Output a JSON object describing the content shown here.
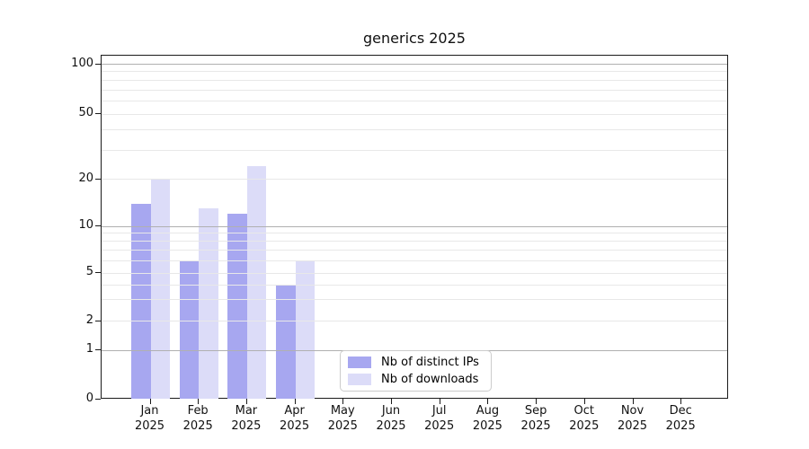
{
  "title": "generics 2025",
  "chart_data": {
    "type": "bar",
    "title": "generics 2025",
    "categories": [
      "Jan",
      "Feb",
      "Mar",
      "Apr",
      "May",
      "Jun",
      "Jul",
      "Aug",
      "Sep",
      "Oct",
      "Nov",
      "Dec"
    ],
    "year_label": "2025",
    "series": [
      {
        "name": "Nb of distinct IPs",
        "color": "#a7a7f0",
        "values": [
          14,
          6,
          12,
          4,
          0,
          0,
          0,
          0,
          0,
          0,
          0,
          0
        ]
      },
      {
        "name": "Nb of downloads",
        "color": "#dcdcf8",
        "values": [
          20,
          13,
          24,
          6,
          0,
          0,
          0,
          0,
          0,
          0,
          0,
          0
        ]
      }
    ],
    "yscale": "symlog",
    "ylim": [
      0,
      100
    ],
    "ytick_labels": [
      0,
      1,
      2,
      5,
      10,
      20,
      50,
      100
    ],
    "grid": "horizontal",
    "legend_position": "bottom-center"
  }
}
